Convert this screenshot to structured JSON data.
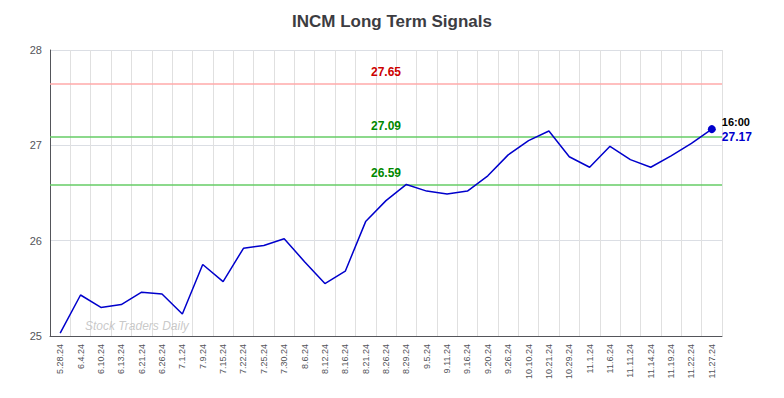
{
  "chart_data": {
    "type": "line",
    "title": "INCM Long Term Signals",
    "categories": [
      "5.28.24",
      "6.4.24",
      "6.10.24",
      "6.13.24",
      "6.21.24",
      "6.26.24",
      "7.1.24",
      "7.9.24",
      "7.15.24",
      "7.22.24",
      "7.25.24",
      "7.30.24",
      "8.6.24",
      "8.12.24",
      "8.16.24",
      "8.21.24",
      "8.26.24",
      "8.29.24",
      "9.5.24",
      "9.11.24",
      "9.16.24",
      "9.20.24",
      "9.26.24",
      "10.10.24",
      "10.21.24",
      "10.29.24",
      "11.1.24",
      "11.6.24",
      "11.11.24",
      "11.14.24",
      "11.19.24",
      "11.22.24",
      "11.27.24"
    ],
    "values": [
      25.03,
      25.43,
      25.3,
      25.33,
      25.46,
      25.44,
      25.23,
      25.75,
      25.57,
      25.92,
      25.95,
      26.02,
      25.78,
      25.55,
      25.68,
      26.2,
      26.42,
      26.59,
      26.52,
      26.49,
      26.52,
      26.68,
      26.9,
      27.05,
      27.15,
      26.88,
      26.77,
      26.99,
      26.85,
      26.77,
      26.89,
      27.02,
      27.17
    ],
    "color": "#0000cc",
    "ylim": [
      25,
      28
    ],
    "yticks": [
      25,
      26,
      27,
      28
    ],
    "grid": true,
    "hlines": [
      {
        "value": 27.65,
        "label": "27.65",
        "color": "#ffaaaa",
        "label_color": "#cc0000"
      },
      {
        "value": 27.09,
        "label": "27.09",
        "color": "#66cc66",
        "label_color": "#008800"
      },
      {
        "value": 26.59,
        "label": "26.59",
        "color": "#66cc66",
        "label_color": "#008800"
      }
    ],
    "end_labels": [
      {
        "text": "16:00",
        "color": "#000000"
      },
      {
        "text": "27.17",
        "color": "#0000cc"
      }
    ],
    "watermark": {
      "text": "Stock Traders Daily",
      "color": "#bbbbbb"
    }
  }
}
